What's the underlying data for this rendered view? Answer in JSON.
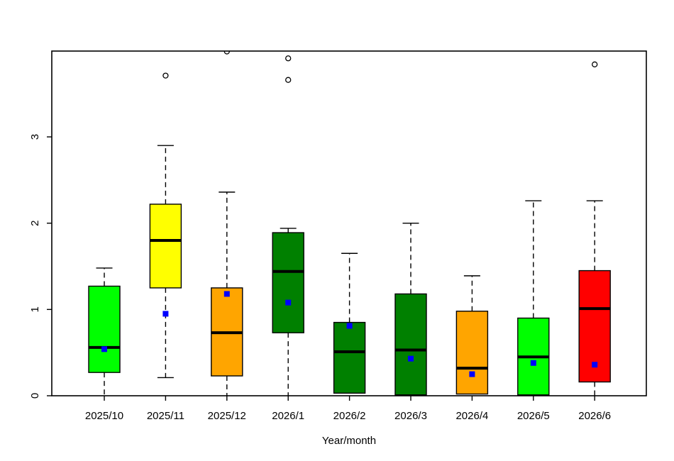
{
  "chart_data": {
    "type": "boxplot",
    "title": "",
    "xlabel": "Year/month",
    "ylabel": "",
    "ylim": [
      0,
      4
    ],
    "yticks": [
      0,
      1,
      2,
      3
    ],
    "grid": false,
    "legend": "none",
    "categories": [
      "2025/10",
      "2025/11",
      "2025/12",
      "2026/1",
      "2026/2",
      "2026/3",
      "2026/4",
      "2026/5",
      "2026/6"
    ],
    "boxes": [
      {
        "label": "2025/10",
        "color": "#00ff00",
        "whisker_low": 0.0,
        "q1": 0.27,
        "median": 0.56,
        "q3": 1.27,
        "whisker_high": 1.48,
        "mean": 0.54,
        "outliers": []
      },
      {
        "label": "2025/11",
        "color": "#ffff00",
        "whisker_low": 0.21,
        "q1": 1.25,
        "median": 1.8,
        "q3": 2.22,
        "whisker_high": 2.9,
        "mean": 0.95,
        "outliers": [
          3.71
        ]
      },
      {
        "label": "2025/12",
        "color": "#ffa500",
        "whisker_low": 0.0,
        "q1": 0.23,
        "median": 0.73,
        "q3": 1.25,
        "whisker_high": 2.36,
        "mean": 1.18,
        "outliers": [
          3.99
        ]
      },
      {
        "label": "2026/1",
        "color": "#008000",
        "whisker_low": 0.0,
        "q1": 0.73,
        "median": 1.44,
        "q3": 1.89,
        "whisker_high": 1.94,
        "mean": 1.08,
        "outliers": [
          3.91,
          3.66
        ]
      },
      {
        "label": "2026/2",
        "color": "#008000",
        "whisker_low": 0.03,
        "q1": 0.03,
        "median": 0.51,
        "q3": 0.85,
        "whisker_high": 1.65,
        "mean": 0.81,
        "outliers": []
      },
      {
        "label": "2026/3",
        "color": "#008000",
        "whisker_low": 0.01,
        "q1": 0.01,
        "median": 0.53,
        "q3": 1.18,
        "whisker_high": 2.0,
        "mean": 0.43,
        "outliers": []
      },
      {
        "label": "2026/4",
        "color": "#ffa500",
        "whisker_low": 0.02,
        "q1": 0.02,
        "median": 0.32,
        "q3": 0.98,
        "whisker_high": 1.39,
        "mean": 0.25,
        "outliers": []
      },
      {
        "label": "2026/5",
        "color": "#00ff00",
        "whisker_low": 0.01,
        "q1": 0.01,
        "median": 0.45,
        "q3": 0.9,
        "whisker_high": 2.26,
        "mean": 0.38,
        "outliers": []
      },
      {
        "label": "2026/6",
        "color": "#ff0000",
        "whisker_low": 0.0,
        "q1": 0.16,
        "median": 1.01,
        "q3": 1.45,
        "whisker_high": 2.26,
        "mean": 0.36,
        "outliers": [
          3.84
        ]
      }
    ],
    "mean_marker": {
      "shape": "square",
      "color": "#0000ff"
    },
    "outlier_marker": {
      "shape": "open-circle",
      "color": "#000000"
    },
    "axis_color": "#000000",
    "background_color": "#ffffff"
  }
}
